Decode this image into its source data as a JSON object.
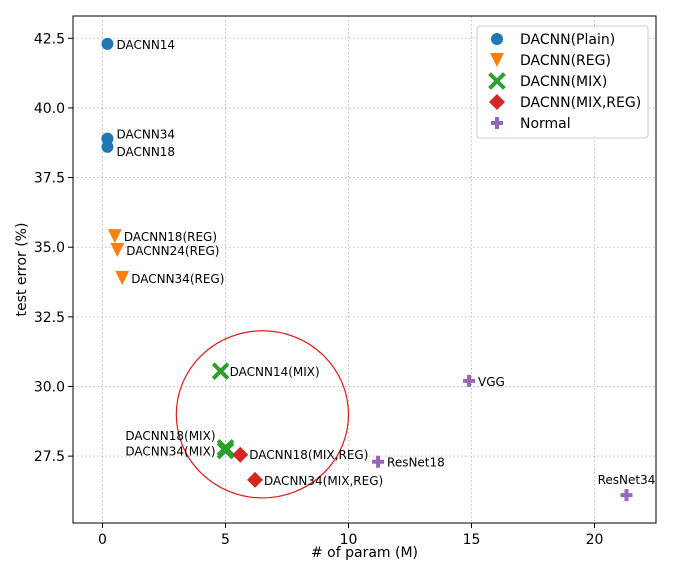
{
  "chart_data": {
    "type": "scatter",
    "xlabel": "# of param (M)",
    "ylabel": "test error (%)",
    "xlim": [
      -1.2,
      22.5
    ],
    "ylim": [
      25.1,
      43.3
    ],
    "x_ticks": [
      0,
      5,
      10,
      15,
      20
    ],
    "y_ticks": [
      27.5,
      30.0,
      32.5,
      35.0,
      37.5,
      40.0,
      42.5
    ],
    "grid": true,
    "legend_position": "top-right",
    "series": [
      {
        "name": "DACNN(Plain)",
        "marker": "circle",
        "color": "#1f77b4",
        "points": [
          {
            "x": 0.2,
            "y": 42.3,
            "label": "DACNN14"
          },
          {
            "x": 0.2,
            "y": 38.9,
            "label": "DACNN34"
          },
          {
            "x": 0.2,
            "y": 38.6,
            "label": "DACNN18"
          }
        ]
      },
      {
        "name": "DACNN(REG)",
        "marker": "triangle-down",
        "color": "#ff7f0e",
        "points": [
          {
            "x": 0.5,
            "y": 35.4,
            "label": "DACNN18(REG)"
          },
          {
            "x": 0.6,
            "y": 34.9,
            "label": "DACNN24(REG)"
          },
          {
            "x": 0.8,
            "y": 33.9,
            "label": "DACNN34(REG)"
          }
        ]
      },
      {
        "name": "DACNN(MIX)",
        "marker": "x-cross",
        "color": "#2ca02c",
        "points": [
          {
            "x": 4.8,
            "y": 30.55,
            "label": "DACNN14(MIX)"
          },
          {
            "x": 5.0,
            "y": 27.8,
            "label": "DACNN18(MIX)"
          },
          {
            "x": 5.0,
            "y": 27.7,
            "label": "DACNN34(MIX)"
          }
        ]
      },
      {
        "name": "DACNN(MIX,REG)",
        "marker": "diamond",
        "color": "#d62728",
        "points": [
          {
            "x": 5.6,
            "y": 27.55,
            "label": "DACNN18(MIX,REG)"
          },
          {
            "x": 6.2,
            "y": 26.65,
            "label": "DACNN34(MIX,REG)"
          }
        ]
      },
      {
        "name": "Normal",
        "marker": "plus",
        "color": "#9467bd",
        "points": [
          {
            "x": 14.9,
            "y": 30.2,
            "label": "VGG"
          },
          {
            "x": 11.2,
            "y": 27.3,
            "label": "ResNet18"
          },
          {
            "x": 21.3,
            "y": 26.1,
            "label": "ResNet34"
          }
        ]
      }
    ],
    "annotation": {
      "shape": "ellipse",
      "color": "#e31a1c",
      "center": [
        6.5,
        29.0
      ],
      "rx": 3.5,
      "ry": 3.0
    }
  }
}
